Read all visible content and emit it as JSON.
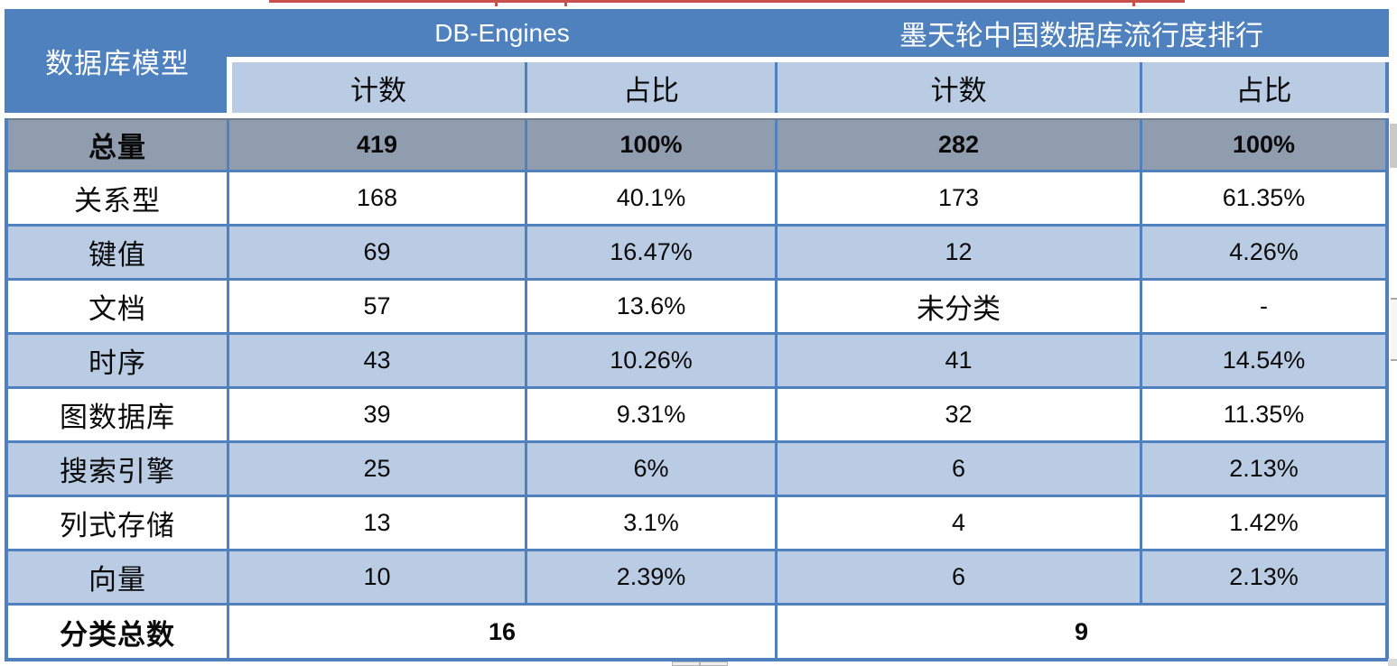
{
  "colors": {
    "header_blue": "#4E81BD",
    "row_light_blue": "#B9CCE4",
    "total_row_gray": "#909DAF",
    "border_blue": "#4E81BD",
    "cropped_text_red": "#C9504D"
  },
  "chart_data": {
    "type": "table",
    "corner_header": "数据库模型",
    "group_headers": [
      "DB-Engines",
      "墨天轮中国数据库流行度排行"
    ],
    "sub_headers": [
      "计数",
      "占比",
      "计数",
      "占比"
    ],
    "total_row": {
      "label": "总量",
      "cells": [
        "419",
        "100%",
        "282",
        "100%"
      ]
    },
    "rows": [
      {
        "label": "关系型",
        "cells": [
          "168",
          "40.1%",
          "173",
          "61.35%"
        ]
      },
      {
        "label": "键值",
        "cells": [
          "69",
          "16.47%",
          "12",
          "4.26%"
        ]
      },
      {
        "label": "文档",
        "cells": [
          "57",
          "13.6%",
          "未分类",
          "-"
        ]
      },
      {
        "label": "时序",
        "cells": [
          "43",
          "10.26%",
          "41",
          "14.54%"
        ]
      },
      {
        "label": "图数据库",
        "cells": [
          "39",
          "9.31%",
          "32",
          "11.35%"
        ]
      },
      {
        "label": "搜索引擎",
        "cells": [
          "25",
          "6%",
          "6",
          "2.13%"
        ]
      },
      {
        "label": "列式存储",
        "cells": [
          "13",
          "3.1%",
          "4",
          "1.42%"
        ]
      },
      {
        "label": "向量",
        "cells": [
          "10",
          "2.39%",
          "6",
          "2.13%"
        ]
      }
    ],
    "footer_row": {
      "label": "分类总数",
      "cells": [
        "16",
        "9"
      ]
    }
  }
}
